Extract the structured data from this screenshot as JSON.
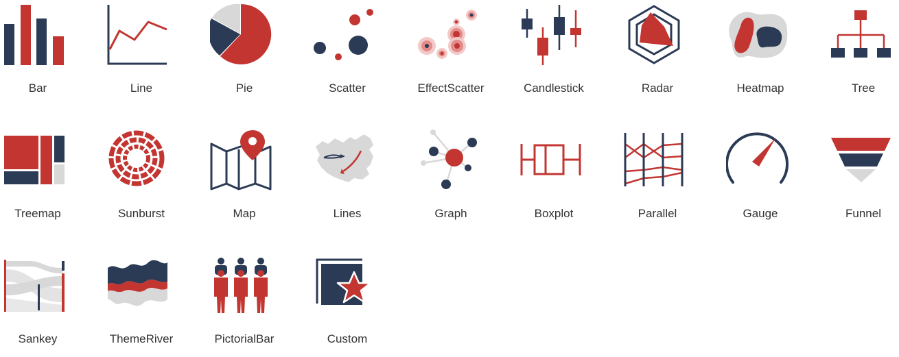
{
  "colors": {
    "navy": "#2b3a55",
    "red": "#c23531",
    "light_gray": "#d8d8d8",
    "text": "#333333",
    "background": "#ffffff"
  },
  "chart_types": [
    {
      "label": "Bar",
      "icon": "bar-chart-icon"
    },
    {
      "label": "Line",
      "icon": "line-chart-icon"
    },
    {
      "label": "Pie",
      "icon": "pie-chart-icon"
    },
    {
      "label": "Scatter",
      "icon": "scatter-chart-icon"
    },
    {
      "label": "EffectScatter",
      "icon": "effect-scatter-icon"
    },
    {
      "label": "Candlestick",
      "icon": "candlestick-icon"
    },
    {
      "label": "Radar",
      "icon": "radar-icon"
    },
    {
      "label": "Heatmap",
      "icon": "heatmap-icon"
    },
    {
      "label": "Tree",
      "icon": "tree-icon"
    },
    {
      "label": "Treemap",
      "icon": "treemap-icon"
    },
    {
      "label": "Sunburst",
      "icon": "sunburst-icon"
    },
    {
      "label": "Map",
      "icon": "map-icon"
    },
    {
      "label": "Lines",
      "icon": "lines-icon"
    },
    {
      "label": "Graph",
      "icon": "graph-icon"
    },
    {
      "label": "Boxplot",
      "icon": "boxplot-icon"
    },
    {
      "label": "Parallel",
      "icon": "parallel-icon"
    },
    {
      "label": "Gauge",
      "icon": "gauge-icon"
    },
    {
      "label": "Funnel",
      "icon": "funnel-icon"
    },
    {
      "label": "Sankey",
      "icon": "sankey-icon"
    },
    {
      "label": "ThemeRiver",
      "icon": "theme-river-icon"
    },
    {
      "label": "PictorialBar",
      "icon": "pictorial-bar-icon"
    },
    {
      "label": "Custom",
      "icon": "custom-icon"
    }
  ]
}
